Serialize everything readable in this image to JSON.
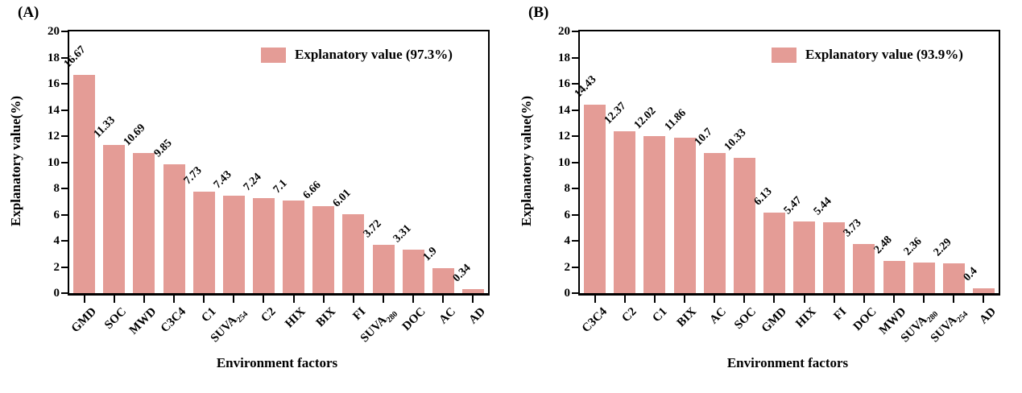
{
  "figure": {
    "background": "#ffffff",
    "text_color": "#000000",
    "bar_color": "#e49c96"
  },
  "chart_data": [
    {
      "type": "bar",
      "panel_label": "(A)",
      "legend_label": "Explanatory value (97.3%)",
      "legend_position": "upper right inside plot",
      "xlabel": "Environment factors",
      "ylabel": "Explanatory value(%)",
      "ylim": [
        0,
        20
      ],
      "ytick_step": 2,
      "grid": false,
      "bar_color": "#e49c96",
      "categories": [
        "GMD",
        "SOC",
        "MWD",
        "C3C4",
        "C1",
        {
          "label": "SUVA",
          "sub": "254"
        },
        "C2",
        "HIX",
        "BIX",
        "FI",
        {
          "label": "SUVA",
          "sub": "280"
        },
        "DOC",
        "AC",
        "AD"
      ],
      "values": [
        16.67,
        11.33,
        10.69,
        9.85,
        7.73,
        7.43,
        7.24,
        7.1,
        6.66,
        6.01,
        3.72,
        3.31,
        1.9,
        0.34
      ]
    },
    {
      "type": "bar",
      "panel_label": "(B)",
      "legend_label": "Explanatory value (93.9%)",
      "legend_position": "upper right inside plot",
      "xlabel": "Environment factors",
      "ylabel": "Explanatory value(%)",
      "ylim": [
        0,
        20
      ],
      "ytick_step": 2,
      "grid": false,
      "bar_color": "#e49c96",
      "categories": [
        "C3C4",
        "C2",
        "C1",
        "BIX",
        "AC",
        "SOC",
        "GMD",
        "HIX",
        "FI",
        "DOC",
        "MWD",
        {
          "label": "SUVA",
          "sub": "280"
        },
        {
          "label": "SUVA",
          "sub": "254"
        },
        "AD"
      ],
      "values": [
        14.43,
        12.37,
        12.02,
        11.86,
        10.7,
        10.33,
        6.13,
        5.47,
        5.44,
        3.73,
        2.48,
        2.36,
        2.29,
        0.4
      ]
    }
  ]
}
